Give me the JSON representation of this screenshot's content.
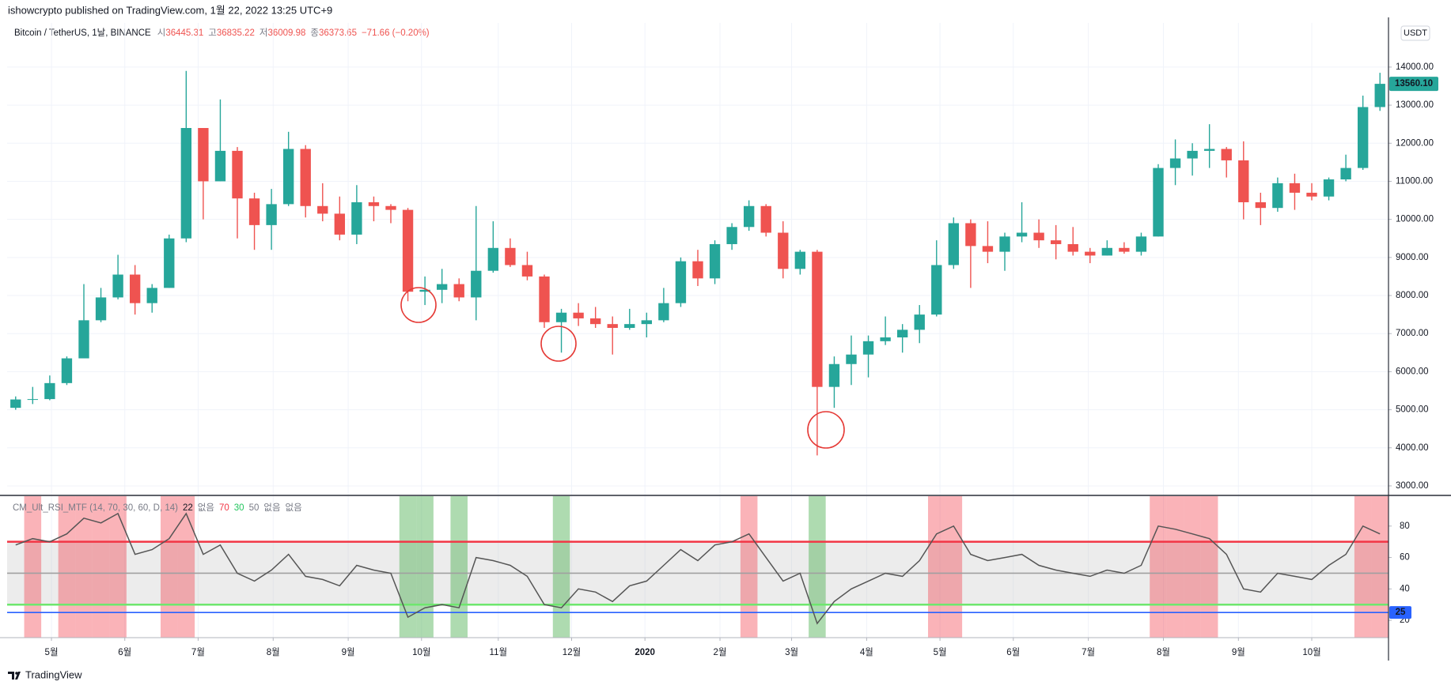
{
  "header": {
    "published": "ishowcrypto published on TradingView.com, 1월 22, 2022 13:25 UTC+9",
    "symbol": "Bitcoin / TetherUS, 1날, BINANCE",
    "ohlc": [
      {
        "label": "시",
        "value": 36445.31
      },
      {
        "label": "고",
        "value": 36835.22
      },
      {
        "label": "저",
        "value": 36009.98
      },
      {
        "label": "종",
        "value": 36373.65
      }
    ],
    "change": "−71.66 (−0.20%)"
  },
  "chart_data": [
    {
      "type": "candlestick",
      "currency": "USDT",
      "up_color": "#26a69a",
      "down_color": "#ef5350",
      "grid": true,
      "open": [
        5050,
        5270,
        5280,
        5700,
        6350,
        7350,
        7950,
        8550,
        7800,
        8200,
        9500,
        12400,
        11000,
        11800,
        10550,
        9850,
        10400,
        11850,
        10350,
        10150,
        9600,
        10450,
        10350,
        10250,
        8100,
        8150,
        8300,
        7950,
        8650,
        9250,
        8800,
        8500,
        7300,
        7550,
        7400,
        7250,
        7150,
        7250,
        7350,
        7800,
        8900,
        8450,
        9350,
        9800,
        10350,
        9650,
        8700,
        9150,
        5600,
        6200,
        6450,
        6800,
        6900,
        7100,
        7500,
        8800,
        9900,
        9300,
        9150,
        9550,
        9650,
        9450,
        9350,
        9150,
        9050,
        9250,
        9150,
        9550,
        11350,
        11600,
        11800,
        11850,
        11550,
        10450,
        10300,
        10950,
        10700,
        10600,
        11050,
        11350,
        12950
      ],
      "high": [
        5350,
        5600,
        5900,
        6400,
        8300,
        8200,
        9070,
        8800,
        8300,
        9600,
        13900,
        12400,
        13150,
        11900,
        10700,
        10800,
        12300,
        11950,
        10950,
        10600,
        10900,
        10600,
        10400,
        10300,
        8500,
        8700,
        8450,
        10350,
        9950,
        9500,
        9150,
        8550,
        7650,
        7800,
        7700,
        7450,
        7650,
        7550,
        8200,
        9000,
        9200,
        9450,
        9900,
        10500,
        10400,
        9950,
        9200,
        9200,
        6400,
        6950,
        6950,
        7450,
        7250,
        7750,
        9450,
        10050,
        10000,
        9950,
        9650,
        10450,
        10000,
        9850,
        9800,
        9250,
        9450,
        9400,
        9650,
        11450,
        12100,
        12000,
        12500,
        11900,
        12050,
        10700,
        11100,
        11200,
        10950,
        11100,
        11700,
        13250,
        13850
      ],
      "low": [
        5000,
        5150,
        5250,
        5650,
        6350,
        7300,
        7900,
        7500,
        7550,
        8200,
        9400,
        10000,
        11000,
        9500,
        9200,
        9200,
        10350,
        10050,
        9950,
        9450,
        9350,
        9950,
        9900,
        7850,
        7750,
        7800,
        7850,
        7350,
        8600,
        8750,
        8400,
        7150,
        6500,
        7200,
        7150,
        6450,
        7100,
        6900,
        7300,
        7700,
        8250,
        8300,
        9200,
        9700,
        9550,
        8450,
        8550,
        3800,
        5050,
        5650,
        5850,
        6700,
        6500,
        6750,
        7450,
        8700,
        8200,
        8850,
        8650,
        9400,
        9250,
        8950,
        9050,
        8850,
        9050,
        9100,
        9050,
        9550,
        10900,
        11150,
        11350,
        11100,
        10000,
        9850,
        10200,
        10250,
        10500,
        10500,
        11000,
        11300,
        12850
      ],
      "close": [
        5270,
        5280,
        5700,
        6350,
        7350,
        7950,
        8550,
        7800,
        8200,
        9500,
        12400,
        11000,
        11800,
        10550,
        9850,
        10400,
        11850,
        10350,
        10150,
        9600,
        10450,
        10350,
        10250,
        8100,
        8150,
        8300,
        7950,
        8650,
        9250,
        8800,
        8500,
        7300,
        7550,
        7400,
        7250,
        7150,
        7250,
        7350,
        7800,
        8900,
        8450,
        9350,
        9800,
        10350,
        9650,
        8700,
        9150,
        5600,
        6200,
        6450,
        6800,
        6900,
        7100,
        7500,
        8800,
        9900,
        9300,
        9150,
        9550,
        9650,
        9450,
        9350,
        9150,
        9050,
        9250,
        9150,
        9550,
        11350,
        11600,
        11800,
        11850,
        11550,
        10450,
        10300,
        10950,
        10700,
        10600,
        11050,
        11350,
        12950,
        13560.1
      ],
      "last_label": "13560.10",
      "ylim": [
        2750,
        15160
      ],
      "yticks": [
        {
          "value": 3000,
          "label": "3000.00"
        },
        {
          "value": 4000,
          "label": "4000.00"
        },
        {
          "value": 5000,
          "label": "5000.00"
        },
        {
          "value": 6000,
          "label": "6000.00"
        },
        {
          "value": 7000,
          "label": "7000.00"
        },
        {
          "value": 8000,
          "label": "8000.00"
        },
        {
          "value": 9000,
          "label": "9000.00"
        },
        {
          "value": 10000,
          "label": "10000.00"
        },
        {
          "value": 11000,
          "label": "11000.00"
        },
        {
          "value": 12000,
          "label": "12000.00"
        },
        {
          "value": 13000,
          "label": "13000.00"
        },
        {
          "value": 14000,
          "label": "14000.00"
        }
      ],
      "xlim": [
        0,
        81
      ],
      "xticks": [
        {
          "value": 2.6,
          "label": "5월"
        },
        {
          "value": 6.9,
          "label": "6월"
        },
        {
          "value": 11.2,
          "label": "7월"
        },
        {
          "value": 15.6,
          "label": "8월"
        },
        {
          "value": 20.0,
          "label": "9월"
        },
        {
          "value": 24.3,
          "label": "10월"
        },
        {
          "value": 28.8,
          "label": "11월"
        },
        {
          "value": 33.1,
          "label": "12월"
        },
        {
          "value": 37.4,
          "label": "2020"
        },
        {
          "value": 41.8,
          "label": "2월"
        },
        {
          "value": 46.0,
          "label": "3월"
        },
        {
          "value": 50.4,
          "label": "4월"
        },
        {
          "value": 54.7,
          "label": "5월"
        },
        {
          "value": 59.0,
          "label": "6월"
        },
        {
          "value": 63.4,
          "label": "7월"
        },
        {
          "value": 67.8,
          "label": "8월"
        },
        {
          "value": 72.2,
          "label": "9월"
        },
        {
          "value": 76.5,
          "label": "10월"
        }
      ]
    },
    {
      "type": "line",
      "title": "CM_Ult_RSI_MTF (14, 70, 30, 60, D, 14)",
      "legend_items": [
        {
          "text": "22",
          "color": "#131722"
        },
        {
          "text": "없음",
          "color": "#787b86"
        },
        {
          "text": "70",
          "color": "#f23645"
        },
        {
          "text": "30",
          "color": "#22c55e"
        },
        {
          "text": "50",
          "color": "#787b86"
        },
        {
          "text": "없음",
          "color": "#787b86"
        },
        {
          "text": "없음",
          "color": "#787b86"
        }
      ],
      "color": "#555555",
      "values": [
        68,
        72,
        70,
        75,
        85,
        82,
        88,
        62,
        65,
        72,
        88,
        62,
        68,
        50,
        45,
        52,
        62,
        48,
        46,
        42,
        55,
        52,
        50,
        22,
        28,
        30,
        28,
        60,
        58,
        55,
        48,
        30,
        28,
        40,
        38,
        32,
        42,
        45,
        55,
        65,
        58,
        68,
        70,
        75,
        60,
        45,
        50,
        18,
        32,
        40,
        45,
        50,
        48,
        58,
        75,
        80,
        62,
        58,
        60,
        62,
        55,
        52,
        50,
        48,
        52,
        50,
        55,
        80,
        78,
        75,
        72,
        62,
        40,
        38,
        50,
        48,
        46,
        55,
        62,
        80,
        75
      ],
      "levels": [
        {
          "value": 70,
          "color": "#f23645",
          "zone": "above",
          "zone_color": "rgba(242,54,69,0.38)"
        },
        {
          "value": 30,
          "color": "#6ee76e",
          "zone": "below",
          "zone_color": "rgba(76,175,80,0.45)"
        },
        {
          "value": 50,
          "color": "#a0a0a0"
        },
        {
          "value": 25,
          "color": "#2962ff",
          "tag": true
        }
      ],
      "ylim": [
        9,
        99
      ],
      "yticks": [
        20,
        40,
        60,
        80
      ]
    }
  ],
  "footer": "TradingView"
}
